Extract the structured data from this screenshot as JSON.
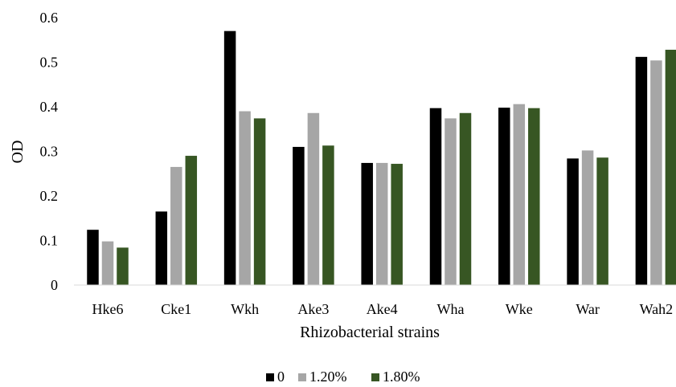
{
  "chart_data": {
    "type": "bar",
    "title": "",
    "xlabel": "Rhizobacterial strains",
    "ylabel": "OD",
    "ylim": [
      0,
      0.6
    ],
    "yticks": [
      "0",
      "0.1",
      "0.2",
      "0.3",
      "0.4",
      "0.5",
      "0.6"
    ],
    "categories": [
      "Hke6",
      "Cke1",
      "Wkh",
      "Ake3",
      "Ake4",
      "Wha",
      "Wke",
      "War",
      "Wah2"
    ],
    "series": [
      {
        "name": "0",
        "color": "#000000",
        "values": [
          0.124,
          0.165,
          0.57,
          0.31,
          0.274,
          0.397,
          0.398,
          0.284,
          0.512
        ]
      },
      {
        "name": "1.20%",
        "color": "#a6a6a6",
        "values": [
          0.098,
          0.265,
          0.39,
          0.386,
          0.274,
          0.374,
          0.406,
          0.302,
          0.504
        ]
      },
      {
        "name": "1.80%",
        "color": "#375623",
        "values": [
          0.084,
          0.29,
          0.374,
          0.313,
          0.272,
          0.386,
          0.397,
          0.286,
          0.528
        ]
      }
    ],
    "grid": false,
    "legend_position": "bottom"
  }
}
